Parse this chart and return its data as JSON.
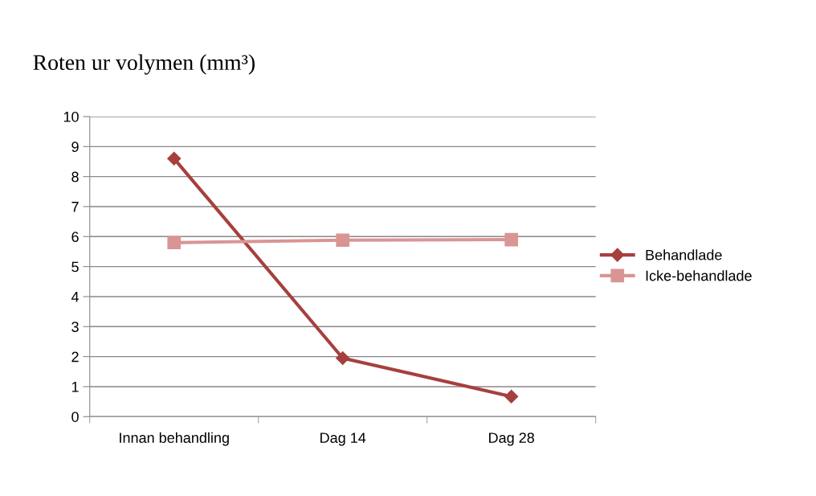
{
  "chart_data": {
    "type": "line",
    "title": "Roten ur volymen (mm³)",
    "categories": [
      "Innan behandling",
      "Dag 14",
      "Dag 28"
    ],
    "series": [
      {
        "name": "Behandlade",
        "color": "#a5403e",
        "values": [
          8.6,
          1.95,
          0.67
        ],
        "marker": "diamond"
      },
      {
        "name": "Icke-behandlade",
        "color": "#d99594",
        "values": [
          5.8,
          5.88,
          5.9
        ],
        "marker": "square"
      }
    ],
    "ylim": [
      0,
      10
    ],
    "yticks": [
      0,
      1,
      2,
      3,
      4,
      5,
      6,
      7,
      8,
      9,
      10
    ],
    "grid": "y",
    "legend": "right",
    "line_style": "solid"
  }
}
